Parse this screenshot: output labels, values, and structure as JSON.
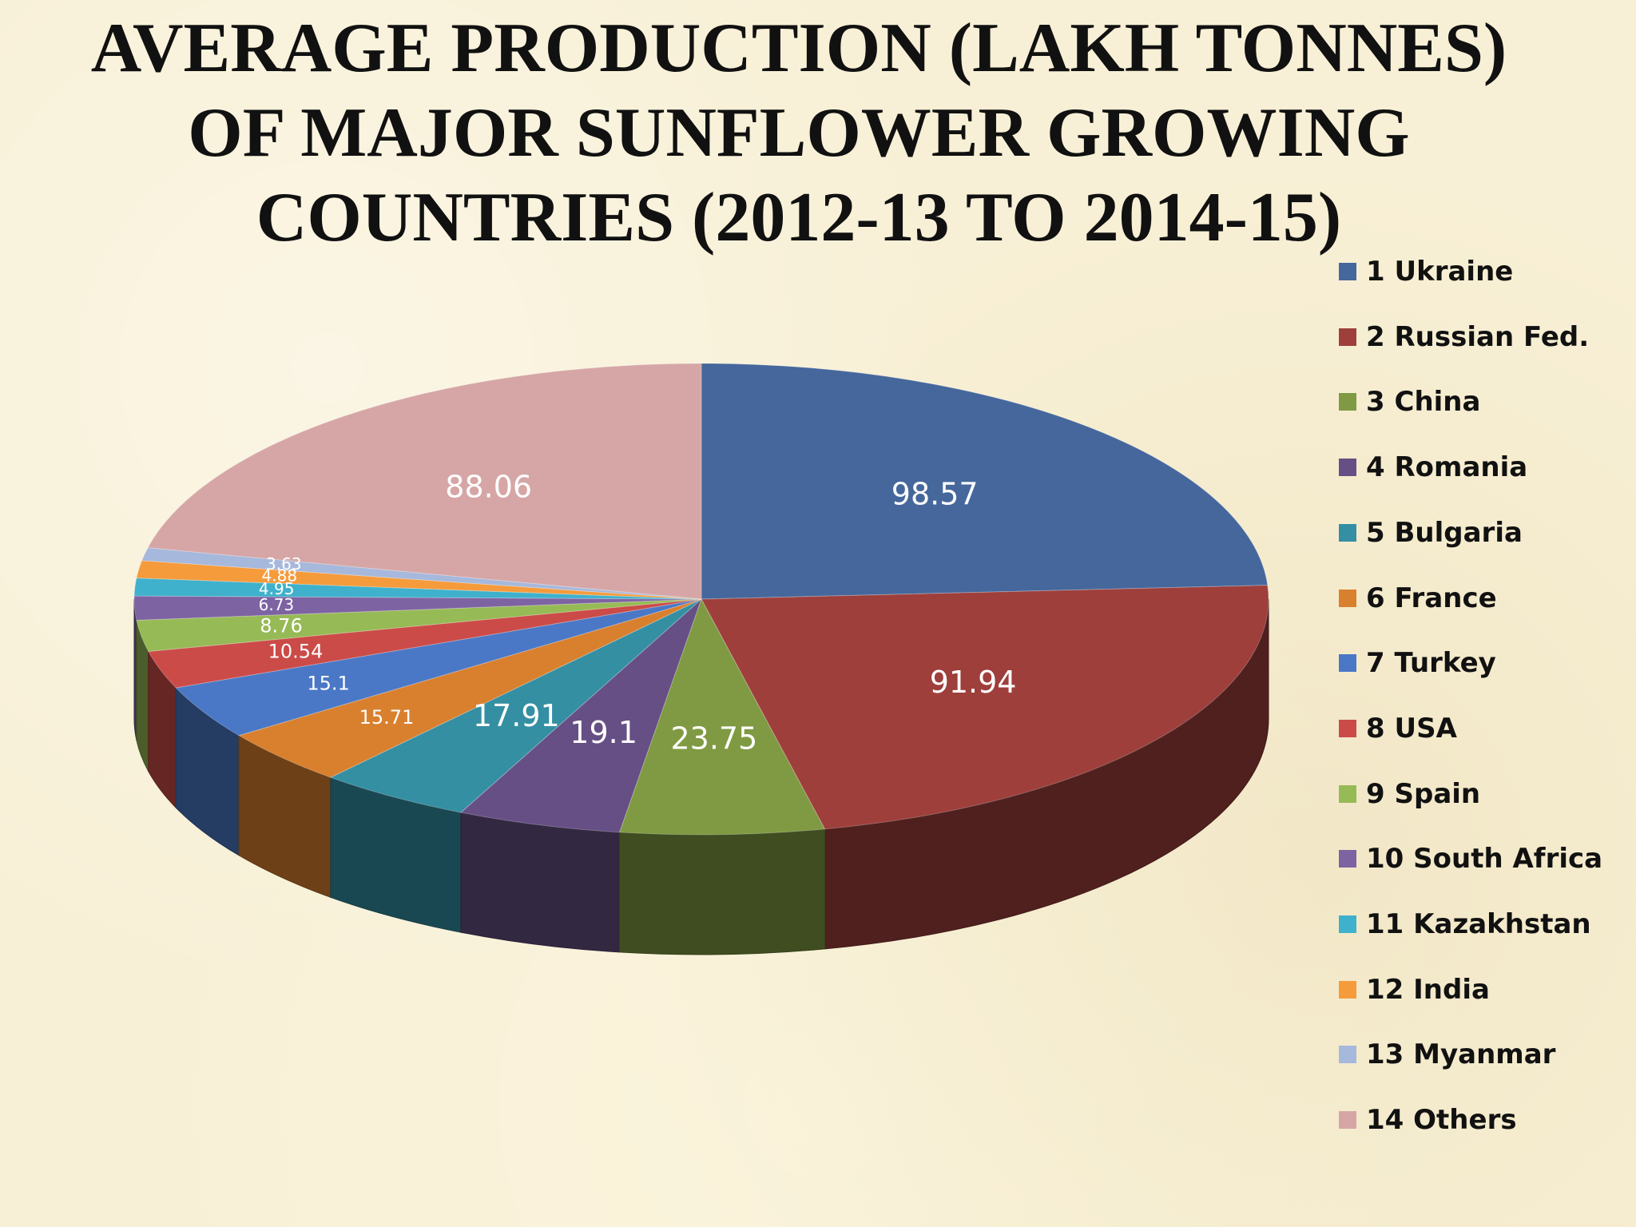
{
  "title": {
    "line1": "AVERAGE PRODUCTION (LAKH TONNES)",
    "line2": "OF MAJOR SUNFLOWER GROWING",
    "line3": "COUNTRIES (2012-13 TO 2014-15)"
  },
  "chart_data": {
    "type": "pie",
    "style": "3d",
    "title": "AVERAGE PRODUCTION (LAKH TONNES) OF MAJOR SUNFLOWER GROWING COUNTRIES (2012-13 TO 2014-15)",
    "unit": "lakh tonnes",
    "legend_position": "right",
    "slices": [
      {
        "label": "1 Ukraine",
        "value": 98.57,
        "value_text": "98.57",
        "color": "#45679c"
      },
      {
        "label": "2 Russian Fed.",
        "value": 91.94,
        "value_text": "91.94",
        "color": "#9e3f3c"
      },
      {
        "label": "3 China",
        "value": 23.75,
        "value_text": "23.75",
        "color": "#7f9a42"
      },
      {
        "label": "4 Romania",
        "value": 19.1,
        "value_text": "19.1",
        "color": "#664f84"
      },
      {
        "label": "5 Bulgaria",
        "value": 17.91,
        "value_text": "17.91",
        "color": "#348fa3"
      },
      {
        "label": "6 France",
        "value": 15.71,
        "value_text": "15.71",
        "color": "#d9802f"
      },
      {
        "label": "7 Turkey",
        "value": 15.1,
        "value_text": "15.1",
        "color": "#4a78c6"
      },
      {
        "label": "8 USA",
        "value": 10.54,
        "value_text": "10.54",
        "color": "#cb4b48"
      },
      {
        "label": "9 Spain",
        "value": 8.76,
        "value_text": "8.76",
        "color": "#96ba55"
      },
      {
        "label": "10 South Africa",
        "value": 6.73,
        "value_text": "6.73",
        "color": "#7e63a3"
      },
      {
        "label": "11 Kazakhstan",
        "value": 4.95,
        "value_text": "4.95",
        "color": "#3fb1cc"
      },
      {
        "label": "12 India",
        "value": 4.88,
        "value_text": "4.88",
        "color": "#f59b3c"
      },
      {
        "label": "13 Myanmar",
        "value": 3.63,
        "value_text": "3.63",
        "color": "#a6b8dc"
      },
      {
        "label": "14 Others",
        "value": 88.06,
        "value_text": "88.06",
        "color": "#d6a6a6"
      }
    ]
  }
}
